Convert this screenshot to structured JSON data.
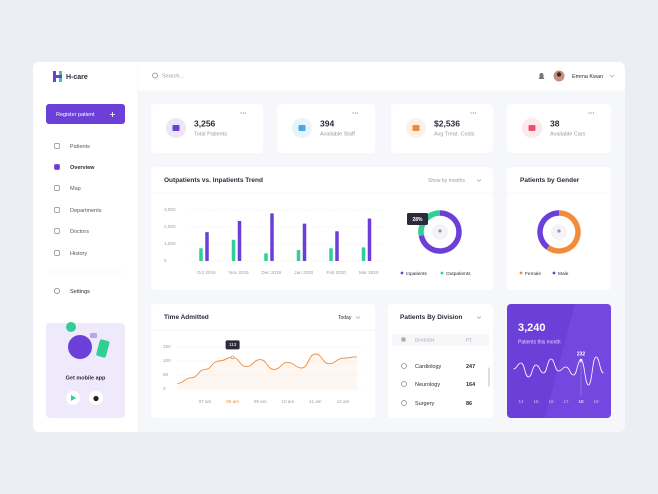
{
  "app": {
    "brand": "H-care",
    "search": "Search...",
    "user": "Emma Kwan"
  },
  "sidebar": {
    "button": "Register patient",
    "menu": [
      "Patients",
      "Overview",
      "Map",
      "Departments",
      "Doctors",
      "History"
    ],
    "settings": "Settings",
    "promo": "Get mobile app"
  },
  "stats": [
    {
      "value": "3,256",
      "label": "Total Patients"
    },
    {
      "value": "394",
      "label": "Available Staff"
    },
    {
      "value": "$2,536",
      "label": "Avg Treat. Costs"
    },
    {
      "value": "38",
      "label": "Available Cars"
    }
  ],
  "trend": {
    "type": "bar",
    "title": "Outpatients vs. Inpatients Trend",
    "filter": "Show by months",
    "categories": [
      "Oct 2019",
      "Nov 2019",
      "Dec 2019",
      "Jan 2020",
      "Feb 2020",
      "Mar 2020"
    ],
    "series": [
      {
        "name": "Outpatients",
        "color": "#2fcf95",
        "values": [
          750,
          1250,
          450,
          650,
          750,
          800
        ]
      },
      {
        "name": "Inpatients",
        "color": "#6b3fd8",
        "values": [
          1700,
          2350,
          2800,
          2200,
          1750,
          2500
        ]
      }
    ],
    "ylim": [
      0,
      3000
    ],
    "yticks": [
      0,
      {
        "value": 1000,
        "label": "1,000"
      },
      {
        "value": 2000,
        "label": "2,000"
      },
      {
        "value": 3000,
        "label": "3,000"
      }
    ],
    "grid": true
  },
  "share": {
    "type": "pie",
    "categories": [
      "Inpatients",
      "Outpatients"
    ],
    "values": [
      72,
      28
    ],
    "value_labels": [
      null,
      "28%"
    ],
    "colors": [
      "#6b3fd8",
      "#2fcf95"
    ]
  },
  "gender": {
    "type": "pie",
    "title": "Patients by Gender",
    "categories": [
      "Female",
      "Male"
    ],
    "values": [
      60,
      40
    ],
    "colors": [
      "#f28c3a",
      "#6b3fd8"
    ]
  },
  "admitted": {
    "type": "line",
    "title": "Time Admitted",
    "filter": "Today",
    "color": "#f28c3a",
    "x": [
      6,
      6.5,
      7,
      7.5,
      8,
      8.5,
      9,
      9.5,
      10,
      10.5,
      11,
      11.5,
      12,
      12.5
    ],
    "values": [
      20,
      40,
      70,
      100,
      113,
      80,
      105,
      70,
      95,
      75,
      125,
      90,
      110,
      115
    ],
    "value_labels": [
      null,
      null,
      null,
      null,
      "113",
      null,
      null,
      null,
      null,
      null,
      null,
      null,
      null,
      null
    ],
    "ylim": [
      0,
      150
    ],
    "yticks": [
      0,
      50,
      100,
      150
    ],
    "xticks": [
      {
        "value": 7,
        "label": "07 am"
      },
      {
        "value": 8,
        "label": "08 am"
      },
      {
        "value": 9,
        "label": "09 am"
      },
      {
        "value": 10,
        "label": "10 am"
      },
      {
        "value": 11,
        "label": "11 am"
      },
      {
        "value": 12,
        "label": "12 am"
      }
    ]
  },
  "division": {
    "title": "Patients By Division",
    "header": [
      "DIVISION",
      "PT."
    ],
    "rows": [
      [
        "Cardiology",
        "247"
      ],
      [
        "Neurology",
        "164"
      ],
      [
        "Surgery",
        "86"
      ]
    ]
  },
  "month": {
    "type": "line",
    "value": "3,240",
    "label": "Patients this month",
    "x": [
      13.5,
      14,
      14.5,
      15,
      15.5,
      16,
      16.5,
      17,
      17.5,
      18,
      18.5,
      19,
      19.5
    ],
    "values": [
      210,
      225,
      190,
      220,
      200,
      235,
      205,
      215,
      195,
      232,
      170,
      240,
      200
    ],
    "value_labels": [
      null,
      null,
      null,
      null,
      null,
      null,
      null,
      null,
      null,
      "232",
      null,
      null,
      null
    ],
    "xticks": [
      14,
      15,
      16,
      17,
      18,
      19
    ]
  }
}
